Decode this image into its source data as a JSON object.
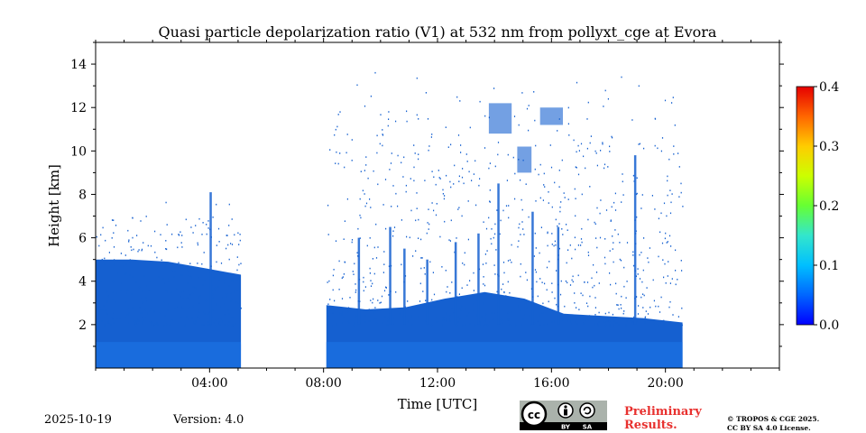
{
  "chart_data": {
    "type": "heatmap",
    "title": "Quasi particle depolarization ratio (V1) at 532 nm from pollyxt_cge at Evora",
    "xlabel": "Time [UTC]",
    "ylabel": "Height [km]",
    "xlim": [
      0,
      24
    ],
    "ylim": [
      0,
      15
    ],
    "x_ticks": [
      {
        "v": 4,
        "label": "04:00"
      },
      {
        "v": 8,
        "label": "08:00"
      },
      {
        "v": 12,
        "label": "12:00"
      },
      {
        "v": 16,
        "label": "16:00"
      },
      {
        "v": 20,
        "label": "20:00"
      }
    ],
    "y_ticks": [
      {
        "v": 2,
        "label": "2"
      },
      {
        "v": 4,
        "label": "4"
      },
      {
        "v": 6,
        "label": "6"
      },
      {
        "v": 8,
        "label": "8"
      },
      {
        "v": 10,
        "label": "10"
      },
      {
        "v": 12,
        "label": "12"
      },
      {
        "v": 14,
        "label": "14"
      }
    ],
    "colorbar": {
      "range": [
        0.0,
        0.4
      ],
      "ticks": [
        {
          "v": 0.0,
          "label": "0.0"
        },
        {
          "v": 0.1,
          "label": "0.1"
        },
        {
          "v": 0.2,
          "label": "0.2"
        },
        {
          "v": 0.3,
          "label": "0.3"
        },
        {
          "v": 0.4,
          "label": "0.4"
        }
      ],
      "colormap": "jet",
      "colors": [
        "#0000ff",
        "#0066ff",
        "#00bfff",
        "#33e6cc",
        "#66ff33",
        "#ccff00",
        "#ffcc00",
        "#ff6600",
        "#e60000"
      ]
    },
    "data_color": "#1560d0",
    "data_color_low": "#1a6fe0",
    "layers": [
      {
        "x_start": 0.0,
        "x_end": 5.1,
        "top_km": [
          5.0,
          5.0,
          4.9,
          4.6,
          4.3
        ]
      },
      {
        "x_start": 8.1,
        "x_end": 20.6,
        "top_km": [
          2.9,
          2.7,
          2.8,
          3.2,
          3.5,
          3.2,
          2.5,
          2.4,
          2.3,
          2.1
        ]
      }
    ],
    "no_data": [
      {
        "x_start": 5.1,
        "x_end": 8.1
      }
    ],
    "cloud_patches": [
      {
        "x_start": 13.8,
        "x_end": 14.6,
        "y_start": 10.8,
        "y_end": 12.2
      },
      {
        "x_start": 15.6,
        "x_end": 16.4,
        "y_start": 11.2,
        "y_end": 12.0
      },
      {
        "x_start": 14.8,
        "x_end": 15.3,
        "y_start": 9.0,
        "y_end": 10.2
      }
    ]
  },
  "footer": {
    "date": "2025-10-19",
    "version": "Version: 4.0",
    "preliminary_line1": "Preliminary",
    "preliminary_line2": "Results.",
    "copyright_line1": "© TROPOS & CGE 2025.",
    "copyright_line2": "CC BY SA 4.0 License.",
    "license_badge": {
      "cc": "cc",
      "by": "BY",
      "sa": "SA"
    }
  }
}
